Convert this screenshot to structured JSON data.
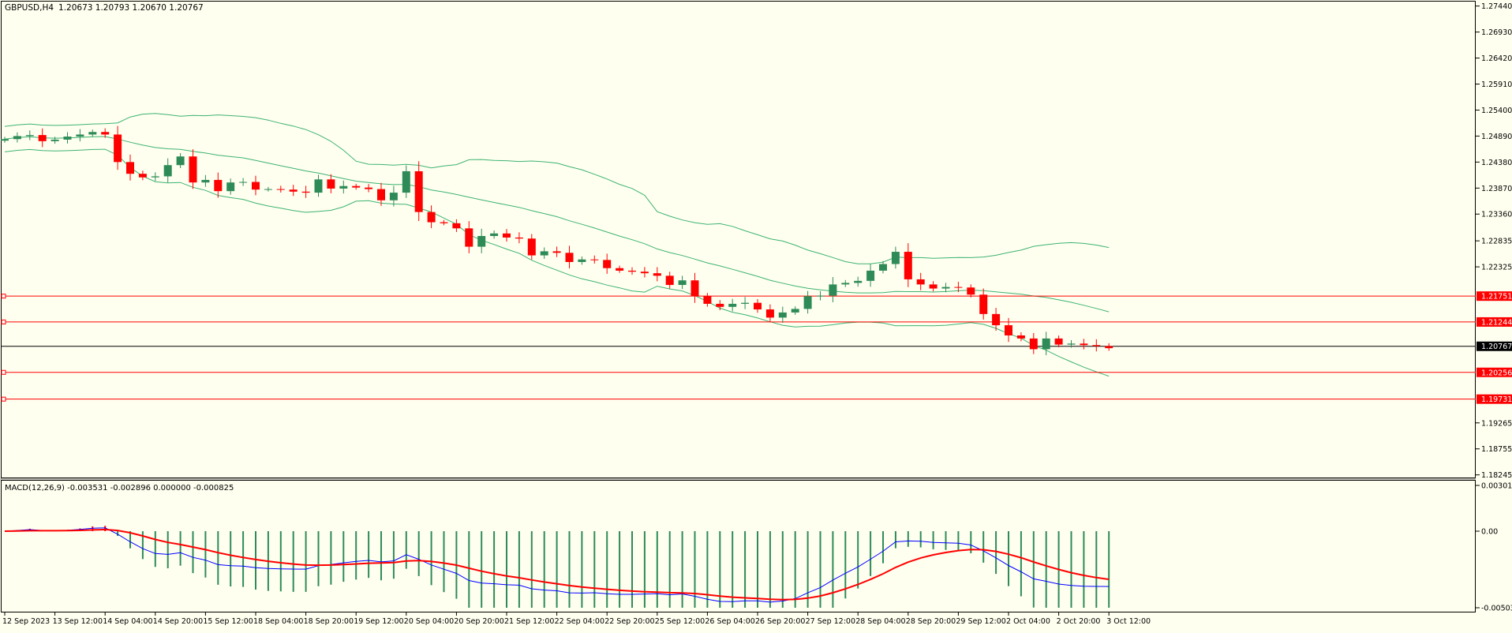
{
  "header": {
    "symbol": "GBPUSD,H4",
    "ohlc": "1.20673 1.20793 1.20670 1.20767"
  },
  "macd_header": "MACD(12,26,9) -0.003531 -0.002896 0.000000 -0.000825",
  "colors": {
    "background": "#FFFFF0",
    "bull": "#2E8B57",
    "bear": "#FF0000",
    "band": "#3CB371",
    "hline": "#FF0000",
    "price_line": "#000000",
    "macd_line": "#0000FF",
    "signal_line": "#FF0000",
    "axis_text": "#000000"
  },
  "chart_data": [
    {
      "type": "candlestick",
      "symbol": "GBPUSD",
      "timeframe": "H4",
      "ylim": [
        1.1824,
        1.2745
      ],
      "yticks": [
        "1.27440",
        "1.26930",
        "1.26420",
        "1.25910",
        "1.25400",
        "1.24890",
        "1.24380",
        "1.23870",
        "1.23360",
        "1.22835",
        "1.22325",
        "1.19265",
        "1.18755",
        "1.18245"
      ],
      "xticks": [
        "12 Sep 2023",
        "13 Sep 12:00",
        "14 Sep 04:00",
        "14 Sep 20:00",
        "15 Sep 12:00",
        "18 Sep 04:00",
        "18 Sep 20:00",
        "19 Sep 12:00",
        "20 Sep 04:00",
        "20 Sep 20:00",
        "21 Sep 12:00",
        "22 Sep 04:00",
        "22 Sep 20:00",
        "25 Sep 12:00",
        "26 Sep 04:00",
        "26 Sep 20:00",
        "27 Sep 12:00",
        "28 Sep 04:00",
        "28 Sep 20:00",
        "29 Sep 12:00",
        "2 Oct 04:00",
        "2 Oct 20:00",
        "3 Oct 12:00"
      ],
      "close_series": [
        1.2483,
        1.2489,
        1.2491,
        1.2479,
        1.2482,
        1.2488,
        1.2492,
        1.2497,
        1.2492,
        1.2438,
        1.2415,
        1.2408,
        1.241,
        1.2432,
        1.2449,
        1.2398,
        1.2403,
        1.2381,
        1.2398,
        1.2399,
        1.2384,
        1.2385,
        1.2384,
        1.238,
        1.2378,
        1.2404,
        1.2386,
        1.2391,
        1.2388,
        1.2385,
        1.2363,
        1.2378,
        1.242,
        1.234,
        1.232,
        1.2318,
        1.2308,
        1.2272,
        1.2293,
        1.2298,
        1.229,
        1.2288,
        1.2255,
        1.2263,
        1.226,
        1.2242,
        1.2247,
        1.2246,
        1.223,
        1.2225,
        1.2223,
        1.222,
        1.2215,
        1.2197,
        1.2206,
        1.2175,
        1.216,
        1.2154,
        1.216,
        1.2162,
        1.2149,
        1.2133,
        1.2143,
        1.215,
        1.2175,
        1.2176,
        1.2198,
        1.2201,
        1.2205,
        1.2225,
        1.2238,
        1.2262,
        1.2208,
        1.2198,
        1.219,
        1.2193,
        1.2192,
        1.2178,
        1.214,
        1.2118,
        1.2098,
        1.2092,
        1.2071,
        1.2092,
        1.208,
        1.2082,
        1.2079,
        1.2077,
        1.2073
      ],
      "horizontal_levels": [
        {
          "value": 1.21751,
          "label": "1.21751"
        },
        {
          "value": 1.21244,
          "label": "1.21244"
        },
        {
          "value": 1.20256,
          "label": "1.20256"
        },
        {
          "value": 1.19731,
          "label": "1.19731"
        }
      ],
      "current_price": {
        "value": 1.20767,
        "label": "1.20767"
      },
      "indicators": [
        "Bollinger Bands"
      ]
    },
    {
      "type": "macd",
      "params": "12,26,9",
      "ylim": [
        -0.005036,
        0.00301
      ],
      "yticks": [
        "0.00301",
        "0.00",
        "-0.005036"
      ]
    }
  ]
}
